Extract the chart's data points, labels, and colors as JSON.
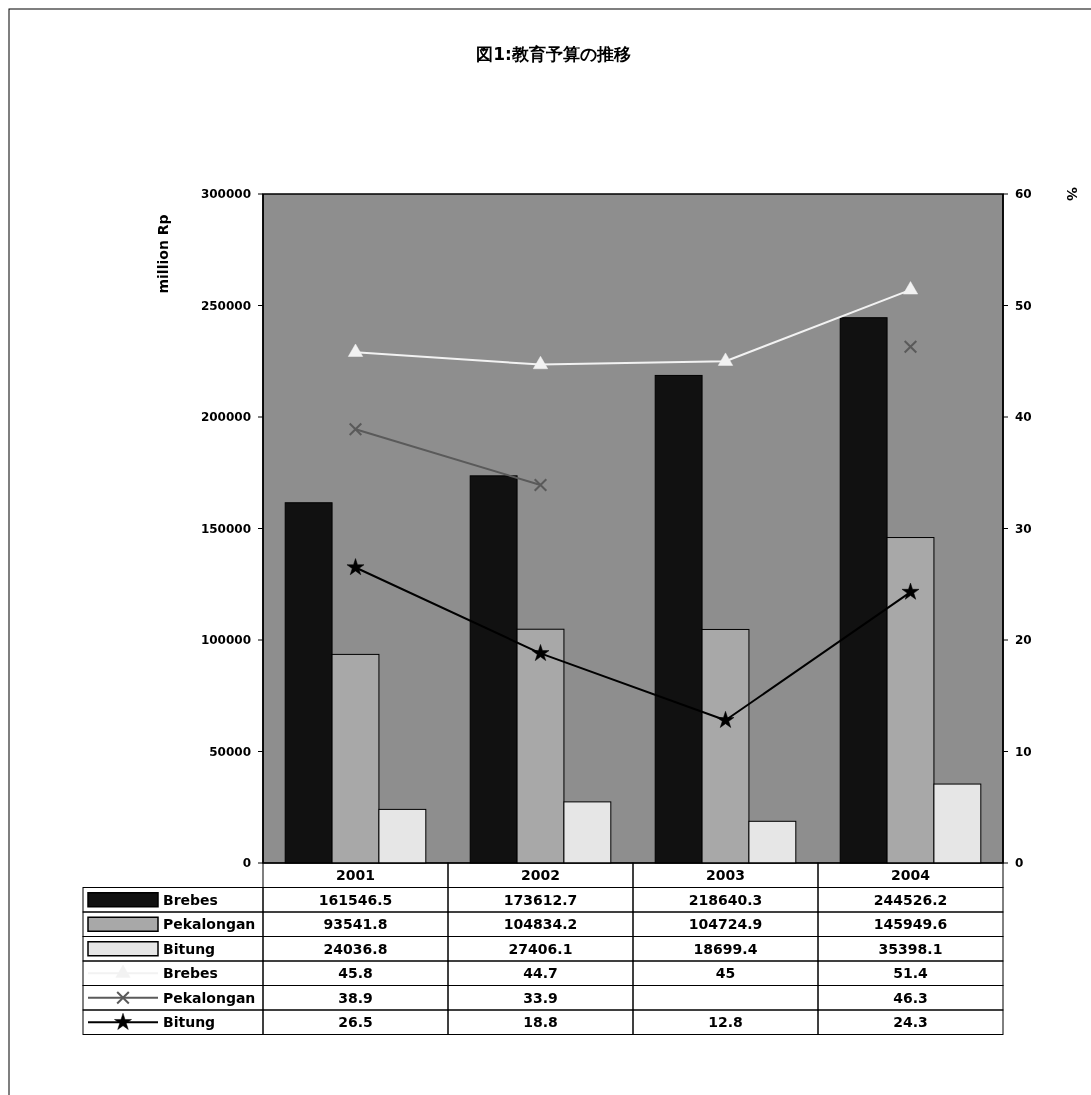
{
  "chart_data": {
    "type": "bar",
    "title": "図1:教育予算の推移",
    "ylabel": "million Rp",
    "y2label": "%",
    "categories": [
      "2001",
      "2002",
      "2003",
      "2004"
    ],
    "series": [
      {
        "name": "Brebes",
        "color": "#111111",
        "values": [
          161546.5,
          173612.7,
          218640.3,
          244526.2
        ]
      },
      {
        "name": "Pekalongan",
        "color": "#a8a8a8",
        "values": [
          93541.8,
          104834.2,
          104724.9,
          145949.6
        ]
      },
      {
        "name": "Bitung",
        "color": "#e6e6e6",
        "values": [
          24036.8,
          27406.1,
          18699.4,
          35398.1
        ]
      },
      {
        "name": "Brebes",
        "type": "line",
        "axis": "y2",
        "color": "#f2f2f2",
        "marker": "triangle",
        "values": [
          45.8,
          44.7,
          45,
          51.4
        ]
      },
      {
        "name": "Pekalongan",
        "type": "line",
        "axis": "y2",
        "color": "#5a5a5a",
        "marker": "cross",
        "values": [
          38.9,
          33.9,
          null,
          46.3
        ]
      },
      {
        "name": "Bitung",
        "type": "line",
        "axis": "y2",
        "color": "#000000",
        "marker": "star",
        "values": [
          26.5,
          18.8,
          12.8,
          24.3
        ]
      }
    ],
    "ylim": [
      0,
      300000
    ],
    "yticks": [
      0,
      50000,
      100000,
      150000,
      200000,
      250000,
      300000
    ],
    "y2lim": [
      0,
      60
    ],
    "y2ticks": [
      0,
      10,
      20,
      30,
      40,
      50,
      60
    ],
    "grid": false,
    "legend": "bottom",
    "data_labels": true
  }
}
